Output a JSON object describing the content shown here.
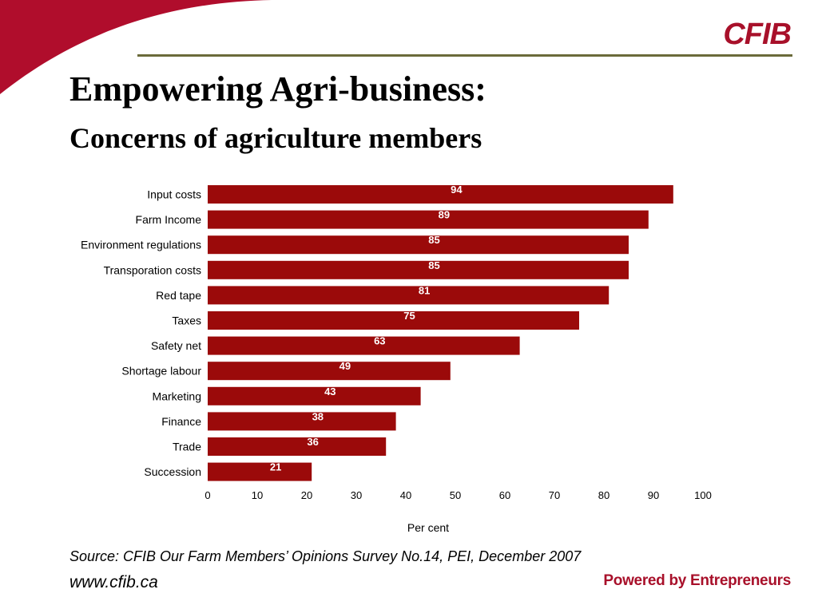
{
  "branding": {
    "logo_text": "CFIB",
    "tagline": "Powered by Entrepreneurs",
    "website": "www.cfib.ca",
    "accent_color": "#a8102a",
    "bar_color": "#9b0a0a"
  },
  "title": "Empowering Agri-business:",
  "subtitle": "Concerns of agriculture members",
  "source": "Source: CFIB Our Farm Members’ Opinions Survey No.14, PEI, December 2007",
  "chart_data": {
    "type": "bar",
    "orientation": "horizontal",
    "categories": [
      "Input costs",
      "Farm Income",
      "Environment regulations",
      "Transporation costs",
      "Red tape",
      "Taxes",
      "Safety net",
      "Shortage labour",
      "Marketing",
      "Finance",
      "Trade",
      "Succession"
    ],
    "values": [
      94,
      89,
      85,
      85,
      81,
      75,
      63,
      49,
      43,
      38,
      36,
      21
    ],
    "xlabel": "Per cent",
    "ylabel": "",
    "xlim": [
      0,
      100
    ],
    "xticks": [
      0,
      10,
      20,
      30,
      40,
      50,
      60,
      70,
      80,
      90,
      100
    ],
    "data_labels": true,
    "grid": false,
    "legend": "none"
  }
}
